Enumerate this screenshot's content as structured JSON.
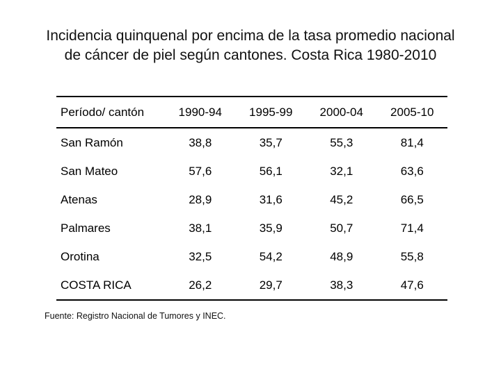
{
  "title_line1": "Incidencia quinquenal por encima de la tasa promedio nacional",
  "title_line2": "de cáncer de piel según cantones. Costa Rica 1980-2010",
  "table": {
    "headers": [
      "Período/ cantón",
      "1990-94",
      "1995-99",
      "2000-04",
      "2005-10"
    ],
    "rows": [
      [
        "San  Ramón",
        "38,8",
        "35,7",
        "55,3",
        "81,4"
      ],
      [
        "San Mateo",
        "57,6",
        "56,1",
        "32,1",
        "63,6"
      ],
      [
        "Atenas",
        "28,9",
        "31,6",
        "45,2",
        "66,5"
      ],
      [
        "Palmares",
        "38,1",
        "35,9",
        "50,7",
        "71,4"
      ],
      [
        "Orotina",
        "32,5",
        "54,2",
        "48,9",
        "55,8"
      ],
      [
        "COSTA RICA",
        "26,2",
        "29,7",
        "38,3",
        "47,6"
      ]
    ]
  },
  "source": "Fuente: Registro Nacional de Tumores y INEC."
}
